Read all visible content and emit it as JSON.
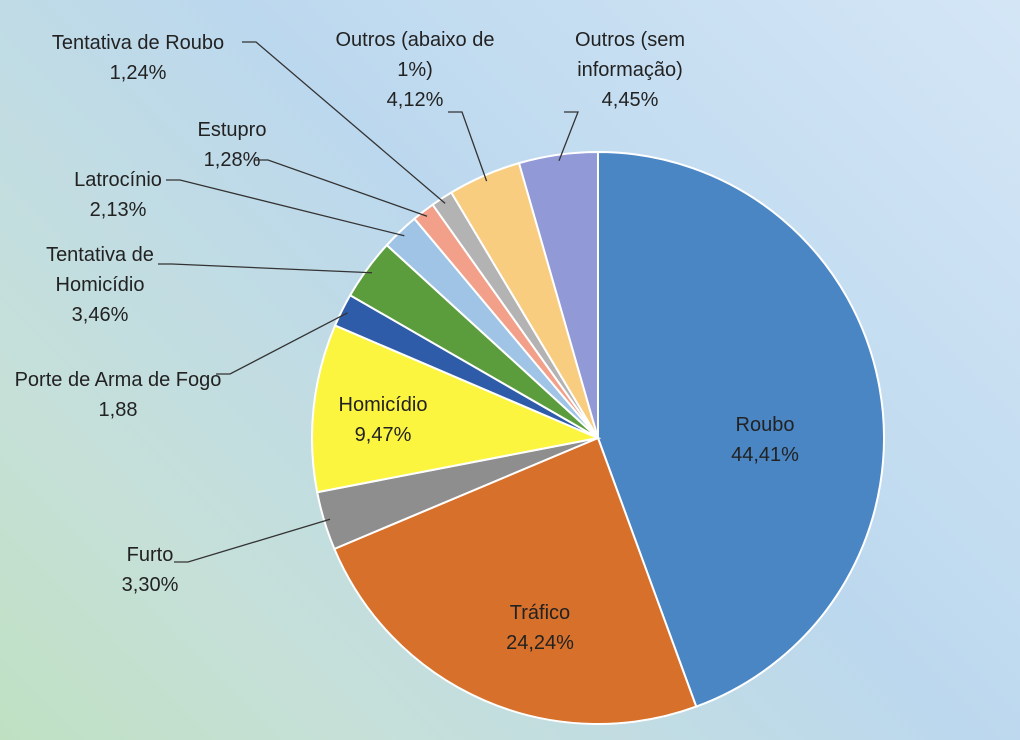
{
  "chart_data": {
    "type": "pie",
    "categories": [
      "Roubo",
      "Tráfico",
      "Furto",
      "Homicídio",
      "Porte de Arma de Fogo",
      "Tentativa de Homicídio",
      "Latrocínio",
      "Estupro",
      "Tentativa de Roubo",
      "Outros (abaixo de 1%)",
      "Outros (sem informação)"
    ],
    "values": [
      44.41,
      24.24,
      3.3,
      9.47,
      1.88,
      3.46,
      2.13,
      1.28,
      1.24,
      4.12,
      4.45
    ],
    "value_labels": [
      "44,41%",
      "24,24%",
      "3,30%",
      "9,47%",
      "1,88",
      "3,46%",
      "2,13%",
      "1,28%",
      "1,24%",
      "4,12%",
      "4,45%"
    ],
    "colors": [
      "#4a86c4",
      "#d7702b",
      "#8e8e8e",
      "#fbf53f",
      "#2f5ca8",
      "#5b9d3d",
      "#9fc4e6",
      "#f3a08a",
      "#b3b3b3",
      "#f8cd80",
      "#9199d6"
    ]
  }
}
